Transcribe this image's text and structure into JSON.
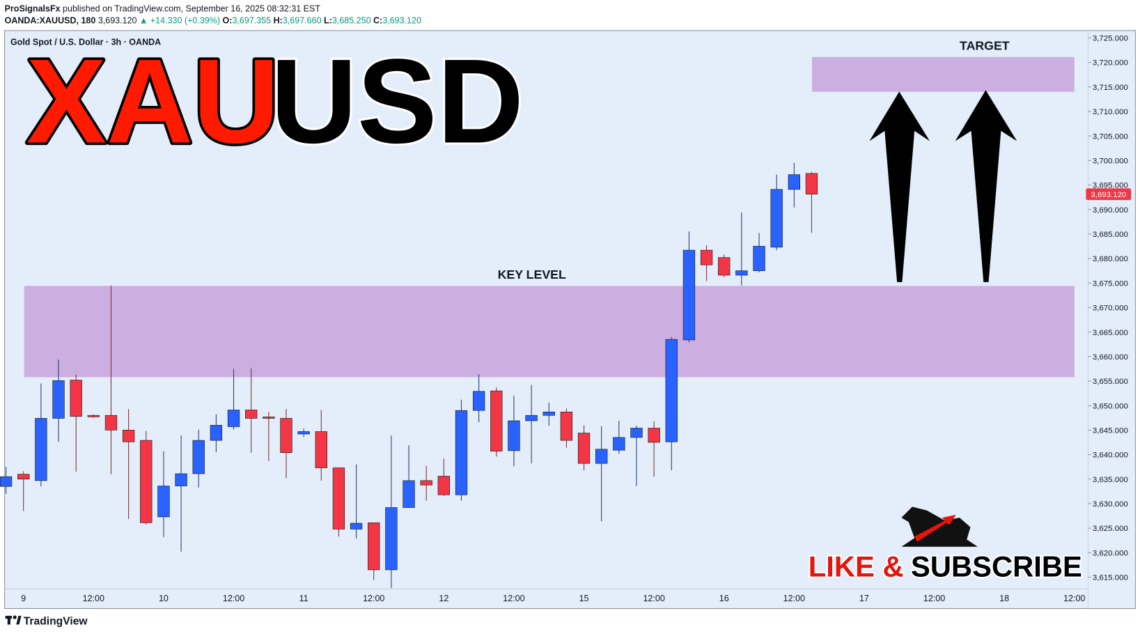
{
  "header": {
    "author": "ProSignalsFx",
    "published": "published on TradingView.com, September 16, 2025 08:32:31 EST",
    "symbol": "OANDA:XAUUSD, 180",
    "price": "3,693.120",
    "change": "▲ +14.330 (+0.39%)",
    "o_label": "O:",
    "o_value": "3,697.355",
    "h_label": "H:",
    "h_value": "3,697.660",
    "l_label": "L:",
    "l_value": "3,685.250",
    "c_label": "C:",
    "c_value": "3,693.120"
  },
  "legend_text": "Gold Spot / U.S. Dollar · 3h · OANDA",
  "headline": {
    "red": "XAU",
    "black": "USD"
  },
  "cta": {
    "red": "LIKE &",
    "black": "SUBSCRIBE"
  },
  "footer": "TradingView",
  "chart_data": {
    "type": "candlestick",
    "up_color": "#2962ff",
    "down_color": "#f23645",
    "categories": [
      null,
      "9",
      null,
      null,
      null,
      "12:00",
      null,
      null,
      null,
      "10",
      null,
      null,
      null,
      "12:00",
      null,
      null,
      null,
      "11",
      null,
      null,
      null,
      "12:00",
      null,
      null,
      null,
      "12",
      null,
      null,
      null,
      "12:00",
      null,
      null,
      null,
      "15",
      null,
      null,
      null,
      "12:00",
      null,
      null,
      null,
      "16",
      null,
      null,
      null,
      "12:00",
      null,
      null,
      null,
      "17",
      null,
      null,
      null,
      "12:00",
      null,
      null,
      null,
      "18",
      null,
      null,
      null,
      "12:00"
    ],
    "open": [
      3633.5,
      3636,
      3634.7,
      3647.4,
      3655.2,
      3648,
      3648,
      3645,
      3642.9,
      3627.3,
      3633.6,
      3636.1,
      3642.9,
      3645.7,
      3649.1,
      3647.7,
      3647.4,
      3644.2,
      3644.7,
      3637.3,
      3624.8,
      3626.1,
      3616.5,
      3629.2,
      3634.7,
      3635.6,
      3631.8,
      3649,
      3653,
      3640.8,
      3646.9,
      3648,
      3648.7,
      3644.4,
      3638.2,
      3640.9,
      3643.5,
      3645.4,
      3642.6,
      3663.4,
      3681.7,
      3680.2,
      3676.6,
      3677.5,
      3682.3,
      3694.1,
      3697.355,
      null,
      null,
      null,
      null,
      null,
      null,
      null,
      null,
      null,
      null,
      null,
      null,
      null,
      null,
      null
    ],
    "high": [
      3637.5,
      3636.6,
      3654.5,
      3659.4,
      3656.3,
      3648.2,
      3674.5,
      3649.3,
      3644.8,
      3640.7,
      3643.9,
      3645.1,
      3648.2,
      3657.5,
      3657.6,
      3648.7,
      3649.3,
      3645.3,
      3649.1,
      3637.3,
      3638,
      3626.1,
      3643.9,
      3641.9,
      3637.7,
      3639.2,
      3651.2,
      3656.4,
      3653.7,
      3652,
      3654.2,
      3650.6,
      3649.4,
      3646,
      3645.8,
      3646.9,
      3645.9,
      3646.8,
      3664,
      3685.5,
      3682.7,
      3680.8,
      3689.4,
      3685.2,
      3697.1,
      3699.5,
      3697.66,
      null,
      null,
      null,
      null,
      null,
      null,
      null,
      null,
      null,
      null,
      null,
      null,
      null,
      null,
      null
    ],
    "low": [
      3632,
      3628.5,
      3633.5,
      3642.6,
      3636.5,
      3647.5,
      3636,
      3626.9,
      3625.8,
      3623.2,
      3620.2,
      3633.3,
      3640.5,
      3645.1,
      3640.4,
      3638.7,
      3635.2,
      3643.6,
      3634.7,
      3623.3,
      3622.9,
      3614.4,
      3612.8,
      3629.2,
      3630.6,
      3631.6,
      3630.6,
      3646.6,
      3639.6,
      3637.6,
      3638.2,
      3645.9,
      3641.4,
      3636.8,
      3626.4,
      3640.2,
      3633.6,
      3635.5,
      3636.8,
      3662.9,
      3675.4,
      3676.2,
      3674.5,
      3677.2,
      3681.7,
      3690.4,
      3685.25,
      null,
      null,
      null,
      null,
      null,
      null,
      null,
      null,
      null,
      null,
      null,
      null,
      null,
      null,
      null
    ],
    "close": [
      3635.5,
      3635,
      3647.4,
      3655.1,
      3647.8,
      3647.7,
      3645,
      3642.6,
      3626.1,
      3633.6,
      3636.1,
      3642.9,
      3646,
      3649.1,
      3647.4,
      3647.4,
      3640.4,
      3644.7,
      3637.3,
      3624.8,
      3626,
      3616.5,
      3629.2,
      3634.7,
      3633.8,
      3631.8,
      3649,
      3652.9,
      3640.7,
      3646.9,
      3648,
      3648.7,
      3642.9,
      3638.2,
      3641.1,
      3643.5,
      3645.4,
      3642.5,
      3663.5,
      3681.7,
      3678.7,
      3676.6,
      3677.5,
      3682.5,
      3694.1,
      3697.1,
      3693.12,
      null,
      null,
      null,
      null,
      null,
      null,
      null,
      null,
      null,
      null,
      null,
      null,
      null,
      null,
      null
    ],
    "ylim": [
      3608.6,
      3726.5
    ],
    "yticks": [
      {
        "value": 3615,
        "label": "3,615.000"
      },
      {
        "value": 3620,
        "label": "3,620.000"
      },
      {
        "value": 3625,
        "label": "3,625.000"
      },
      {
        "value": 3630,
        "label": "3,630.000"
      },
      {
        "value": 3635,
        "label": "3,635.000"
      },
      {
        "value": 3640,
        "label": "3,640.000"
      },
      {
        "value": 3645,
        "label": "3,645.000"
      },
      {
        "value": 3650,
        "label": "3,650.000"
      },
      {
        "value": 3655,
        "label": "3,655.000"
      },
      {
        "value": 3660,
        "label": "3,660.000"
      },
      {
        "value": 3665,
        "label": "3,665.000"
      },
      {
        "value": 3670,
        "label": "3,670.000"
      },
      {
        "value": 3675,
        "label": "3,675.000"
      },
      {
        "value": 3680,
        "label": "3,680.000"
      },
      {
        "value": 3685,
        "label": "3,685.000"
      },
      {
        "value": 3690,
        "label": "3,690.000"
      },
      {
        "value": 3695,
        "label": "3,695.000"
      },
      {
        "value": 3700,
        "label": "3,700.000"
      },
      {
        "value": 3705,
        "label": "3,705.000"
      },
      {
        "value": 3710,
        "label": "3,710.000"
      },
      {
        "value": 3715,
        "label": "3,715.000"
      },
      {
        "value": 3720,
        "label": "3,720.000"
      },
      {
        "value": 3725,
        "label": "3,725.000"
      }
    ],
    "last_price": {
      "value": 3693.12,
      "label": "3,693.120"
    },
    "zones": [
      {
        "label": "KEY LEVEL",
        "from": 3655.8,
        "to": 3674.4,
        "color": "#cdaee0"
      },
      {
        "label": "TARGET",
        "from": 3714,
        "to": 3721.1,
        "color": "#cdaee0"
      }
    ]
  }
}
